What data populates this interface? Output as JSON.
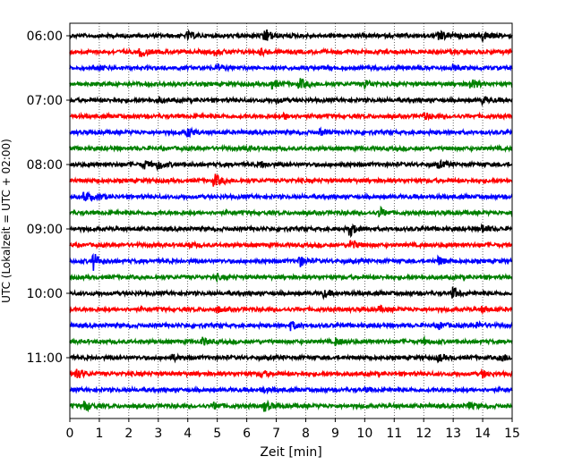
{
  "chart_data": {
    "type": "line",
    "xlabel": "Zeit  [min]",
    "ylabel": "UTC (Lokalzeit = UTC + 02:00)",
    "xlim": [
      0,
      15
    ],
    "x_ticks": [
      "0",
      "1",
      "2",
      "3",
      "4",
      "5",
      "6",
      "7",
      "8",
      "9",
      "10",
      "11",
      "12",
      "13",
      "14",
      "15"
    ],
    "y_ticks": [
      "06:00",
      "07:00",
      "08:00",
      "09:00",
      "10:00",
      "11:00"
    ],
    "grid": "vertical-dotted",
    "trace_colors": [
      "#000000",
      "#ff0000",
      "#0000ff",
      "#008000"
    ],
    "series": [
      {
        "start": "06:00",
        "color": "#000000",
        "events": [
          [
            4.0,
            0.4
          ],
          [
            6.6,
            1.0
          ],
          [
            12.5,
            0.8
          ],
          [
            14.0,
            0.6
          ]
        ]
      },
      {
        "start": "06:15",
        "color": "#ff0000",
        "events": [
          [
            2.4,
            0.6
          ],
          [
            4.9,
            0.3
          ],
          [
            6.5,
            0.3
          ]
        ]
      },
      {
        "start": "06:30",
        "color": "#0000ff",
        "events": [
          [
            1.0,
            0.2
          ],
          [
            5.0,
            0.3
          ],
          [
            13.0,
            0.2
          ]
        ]
      },
      {
        "start": "06:45",
        "color": "#008000",
        "events": [
          [
            6.8,
            0.6
          ],
          [
            7.8,
            0.6
          ],
          [
            10.0,
            0.5
          ],
          [
            13.6,
            0.6
          ]
        ]
      },
      {
        "start": "07:00",
        "color": "#000000",
        "events": [
          [
            3.0,
            0.2
          ],
          [
            7.0,
            0.2
          ],
          [
            14.0,
            0.4
          ]
        ]
      },
      {
        "start": "07:15",
        "color": "#ff0000",
        "events": [
          [
            7.3,
            0.3
          ],
          [
            12.0,
            0.4
          ]
        ]
      },
      {
        "start": "07:30",
        "color": "#0000ff",
        "events": [
          [
            4.0,
            0.5
          ],
          [
            8.5,
            0.3
          ]
        ]
      },
      {
        "start": "07:45",
        "color": "#008000",
        "events": [
          [
            6.0,
            0.2
          ]
        ]
      },
      {
        "start": "08:00",
        "color": "#000000",
        "events": [
          [
            2.5,
            0.5
          ],
          [
            3.0,
            0.5
          ],
          [
            6.5,
            0.3
          ],
          [
            12.5,
            0.4
          ]
        ]
      },
      {
        "start": "08:15",
        "color": "#ff0000",
        "events": [
          [
            4.9,
            0.8
          ]
        ]
      },
      {
        "start": "08:30",
        "color": "#0000ff",
        "events": [
          [
            0.5,
            0.6
          ],
          [
            1.0,
            0.3
          ]
        ]
      },
      {
        "start": "08:45",
        "color": "#008000",
        "events": [
          [
            10.5,
            0.6
          ]
        ]
      },
      {
        "start": "09:00",
        "color": "#000000",
        "events": [
          [
            9.5,
            0.8
          ],
          [
            14.0,
            0.5
          ]
        ]
      },
      {
        "start": "09:15",
        "color": "#ff0000",
        "events": [
          [
            9.5,
            0.7
          ],
          [
            4.0,
            0.3
          ]
        ]
      },
      {
        "start": "09:30",
        "color": "#0000ff",
        "events": [
          [
            0.8,
            1.0
          ],
          [
            7.8,
            0.6
          ],
          [
            12.5,
            0.5
          ]
        ]
      },
      {
        "start": "09:45",
        "color": "#008000",
        "events": [
          [
            5.0,
            0.2
          ]
        ]
      },
      {
        "start": "10:00",
        "color": "#000000",
        "events": [
          [
            8.6,
            0.4
          ],
          [
            13.0,
            0.7
          ]
        ]
      },
      {
        "start": "10:15",
        "color": "#ff0000",
        "events": [
          [
            5.0,
            0.3
          ],
          [
            10.5,
            0.3
          ],
          [
            14.0,
            0.3
          ]
        ]
      },
      {
        "start": "10:30",
        "color": "#0000ff",
        "events": [
          [
            7.5,
            0.5
          ],
          [
            12.5,
            0.4
          ],
          [
            13.8,
            0.3
          ]
        ]
      },
      {
        "start": "10:45",
        "color": "#008000",
        "events": [
          [
            4.5,
            0.4
          ],
          [
            9.0,
            0.4
          ],
          [
            12.0,
            0.3
          ]
        ]
      },
      {
        "start": "11:00",
        "color": "#000000",
        "events": [
          [
            3.5,
            0.3
          ],
          [
            12.5,
            0.4
          ],
          [
            14.6,
            0.6
          ]
        ]
      },
      {
        "start": "11:15",
        "color": "#ff0000",
        "events": [
          [
            0.2,
            0.7
          ],
          [
            6.5,
            0.3
          ],
          [
            14.0,
            0.4
          ]
        ]
      },
      {
        "start": "11:30",
        "color": "#0000ff",
        "events": [
          [
            6.5,
            0.3
          ],
          [
            10.0,
            0.2
          ]
        ]
      },
      {
        "start": "11:45",
        "color": "#008000",
        "events": [
          [
            0.5,
            0.6
          ],
          [
            4.9,
            0.4
          ],
          [
            6.6,
            0.6
          ],
          [
            13.5,
            0.4
          ]
        ]
      }
    ]
  }
}
